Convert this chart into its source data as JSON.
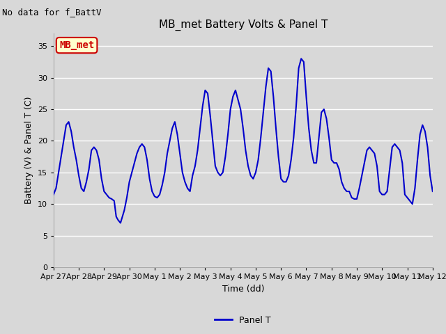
{
  "title": "MB_met Battery Volts & Panel T",
  "no_data_text": "No data for f_BattV",
  "ylabel": "Battery (V) & Panel T (C)",
  "xlabel": "Time (dd)",
  "legend_label": "Panel T",
  "legend_color": "#0000cc",
  "line_color": "#0000cc",
  "line_width": 1.5,
  "ylim": [
    0,
    37
  ],
  "yticks": [
    0,
    5,
    10,
    15,
    20,
    25,
    30,
    35
  ],
  "bg_color": "#d8d8d8",
  "grid_color": "#ffffff",
  "label_box_facecolor": "#ffffcc",
  "label_box_edgecolor": "#cc0000",
  "label_text": "MB_met",
  "label_text_color": "#cc0000",
  "title_fontsize": 11,
  "label_fontsize": 9,
  "tick_fontsize": 8,
  "no_data_fontsize": 9,
  "x_values": [
    0.0,
    0.1,
    0.2,
    0.3,
    0.42,
    0.5,
    0.6,
    0.7,
    0.8,
    0.9,
    1.0,
    1.1,
    1.2,
    1.3,
    1.4,
    1.5,
    1.6,
    1.7,
    1.8,
    1.9,
    2.0,
    2.1,
    2.2,
    2.3,
    2.4,
    2.48,
    2.55,
    2.65,
    2.8,
    2.9,
    3.0,
    3.1,
    3.2,
    3.3,
    3.4,
    3.5,
    3.6,
    3.7,
    3.8,
    3.9,
    4.0,
    4.1,
    4.2,
    4.3,
    4.4,
    4.5,
    4.6,
    4.7,
    4.8,
    4.9,
    5.0,
    5.1,
    5.2,
    5.3,
    5.4,
    5.5,
    5.6,
    5.7,
    5.8,
    5.9,
    6.0,
    6.1,
    6.2,
    6.3,
    6.4,
    6.5,
    6.6,
    6.7,
    6.8,
    6.9,
    7.0,
    7.1,
    7.2,
    7.3,
    7.4,
    7.5,
    7.6,
    7.7,
    7.8,
    7.9,
    8.0,
    8.1,
    8.2,
    8.3,
    8.4,
    8.5,
    8.6,
    8.7,
    8.8,
    8.9,
    9.0,
    9.1,
    9.2,
    9.3,
    9.4,
    9.5,
    9.6,
    9.7,
    9.8,
    9.9,
    10.0,
    10.1,
    10.2,
    10.3,
    10.4,
    10.5,
    10.6,
    10.7,
    10.8,
    10.9,
    11.0,
    11.1,
    11.2,
    11.3,
    11.4,
    11.5,
    11.6,
    11.7,
    11.8,
    11.9,
    12.0,
    12.1,
    12.2,
    12.3,
    12.4,
    12.5,
    12.6,
    12.7,
    12.8,
    12.9,
    13.0,
    13.1,
    13.2,
    13.3,
    13.4,
    13.5,
    13.6,
    13.7,
    13.8,
    13.9,
    14.0,
    14.1,
    14.2,
    14.3,
    14.4,
    14.5,
    14.6,
    14.7,
    14.8,
    14.9,
    15.0
  ],
  "y_values": [
    11.5,
    12.5,
    15.0,
    17.5,
    20.5,
    22.5,
    23.0,
    21.5,
    19.0,
    17.0,
    14.5,
    12.5,
    12.0,
    13.5,
    15.5,
    18.5,
    19.0,
    18.5,
    17.0,
    14.0,
    12.0,
    11.5,
    11.0,
    10.8,
    10.5,
    8.0,
    7.5,
    7.0,
    9.0,
    11.0,
    13.5,
    15.0,
    16.5,
    18.0,
    19.0,
    19.5,
    19.0,
    17.0,
    14.0,
    12.0,
    11.2,
    11.0,
    11.5,
    13.0,
    15.0,
    18.0,
    20.0,
    22.0,
    23.0,
    21.0,
    18.0,
    15.0,
    13.5,
    12.5,
    12.0,
    14.5,
    16.0,
    18.5,
    22.0,
    25.5,
    28.0,
    27.5,
    24.0,
    20.0,
    16.0,
    15.0,
    14.5,
    15.0,
    17.5,
    21.0,
    25.0,
    27.0,
    28.0,
    26.5,
    25.0,
    22.0,
    18.5,
    16.0,
    14.5,
    14.0,
    15.0,
    17.0,
    20.5,
    24.5,
    28.5,
    31.5,
    31.0,
    27.0,
    22.0,
    17.5,
    14.0,
    13.5,
    13.5,
    14.5,
    17.0,
    20.5,
    25.5,
    31.5,
    33.0,
    32.5,
    27.0,
    22.0,
    18.5,
    16.5,
    16.5,
    20.5,
    24.5,
    25.0,
    23.5,
    20.5,
    17.0,
    16.5,
    16.5,
    15.5,
    13.5,
    12.5,
    12.0,
    12.0,
    11.0,
    10.8,
    10.8,
    12.5,
    14.5,
    16.5,
    18.5,
    19.0,
    18.5,
    18.0,
    16.0,
    12.0,
    11.5,
    11.5,
    12.0,
    15.5,
    19.0,
    19.5,
    19.0,
    18.5,
    16.5,
    11.5,
    11.0,
    10.5,
    10.0,
    12.5,
    17.0,
    21.0,
    22.5,
    21.5,
    19.0,
    14.5,
    12.0
  ],
  "xtick_positions": [
    0,
    1,
    2,
    3,
    4,
    5,
    6,
    7,
    8,
    9,
    10,
    11,
    12,
    13,
    14,
    15
  ],
  "xtick_labels": [
    "Apr 27",
    "Apr 28",
    "Apr 29",
    "Apr 30",
    "May 1",
    "May 2",
    "May 3",
    "May 4",
    "May 5",
    "May 6",
    "May 7",
    "May 8",
    "May 9",
    "May 10",
    "May 11",
    "May 12"
  ]
}
